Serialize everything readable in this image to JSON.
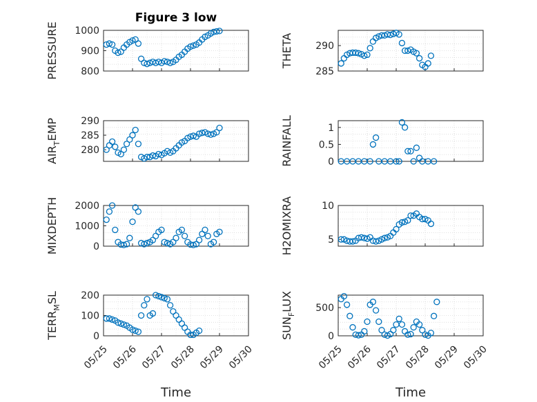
{
  "figure": {
    "title": "Figure 3 low"
  },
  "x_tick_labels": [
    "05/25",
    "05/26",
    "05/27",
    "05/28",
    "05/29",
    "05/30"
  ],
  "xlabel": "Time",
  "marker_color": "#0072bd",
  "chart_data": [
    {
      "type": "scatter",
      "name": "PRESSURE",
      "ylabel": "PRESSURE",
      "ylabel_sub": "",
      "ylim": [
        800,
        1000
      ],
      "yticks": [
        800,
        900,
        1000
      ],
      "xlim": [
        0,
        5
      ],
      "grid": true,
      "show_x_ticks": false,
      "title": "Figure 3 low",
      "points": [
        [
          0.1,
          930
        ],
        [
          0.2,
          935
        ],
        [
          0.3,
          930
        ],
        [
          0.4,
          900
        ],
        [
          0.5,
          890
        ],
        [
          0.6,
          895
        ],
        [
          0.7,
          915
        ],
        [
          0.8,
          930
        ],
        [
          0.9,
          942
        ],
        [
          1.0,
          950
        ],
        [
          1.1,
          955
        ],
        [
          1.2,
          935
        ],
        [
          1.3,
          860
        ],
        [
          1.4,
          840
        ],
        [
          1.5,
          835
        ],
        [
          1.6,
          840
        ],
        [
          1.7,
          845
        ],
        [
          1.8,
          840
        ],
        [
          1.9,
          845
        ],
        [
          2.0,
          840
        ],
        [
          2.1,
          848
        ],
        [
          2.2,
          845
        ],
        [
          2.3,
          840
        ],
        [
          2.4,
          845
        ],
        [
          2.5,
          855
        ],
        [
          2.6,
          870
        ],
        [
          2.7,
          880
        ],
        [
          2.8,
          895
        ],
        [
          2.9,
          910
        ],
        [
          3.0,
          920
        ],
        [
          3.1,
          925
        ],
        [
          3.2,
          930
        ],
        [
          3.3,
          940
        ],
        [
          3.4,
          955
        ],
        [
          3.5,
          968
        ],
        [
          3.6,
          975
        ],
        [
          3.7,
          985
        ],
        [
          3.8,
          992
        ],
        [
          3.9,
          995
        ],
        [
          4.0,
          997
        ]
      ]
    },
    {
      "type": "scatter",
      "name": "THETA",
      "ylabel": "THETA",
      "ylabel_sub": "",
      "ylim": [
        285,
        293
      ],
      "yticks": [
        285,
        290
      ],
      "xlim": [
        0,
        5
      ],
      "grid": true,
      "show_x_ticks": false,
      "points": [
        [
          0.1,
          286.5
        ],
        [
          0.2,
          287.5
        ],
        [
          0.3,
          288.2
        ],
        [
          0.4,
          288.5
        ],
        [
          0.5,
          288.6
        ],
        [
          0.6,
          288.6
        ],
        [
          0.7,
          288.5
        ],
        [
          0.8,
          288.3
        ],
        [
          0.9,
          288.0
        ],
        [
          1.0,
          288.2
        ],
        [
          1.1,
          289.5
        ],
        [
          1.2,
          290.8
        ],
        [
          1.3,
          291.5
        ],
        [
          1.4,
          291.8
        ],
        [
          1.5,
          292.0
        ],
        [
          1.6,
          292.0
        ],
        [
          1.7,
          292.2
        ],
        [
          1.8,
          292.1
        ],
        [
          1.9,
          292.3
        ],
        [
          2.0,
          292.5
        ],
        [
          2.1,
          292.2
        ],
        [
          2.2,
          290.5
        ],
        [
          2.3,
          289.0
        ],
        [
          2.4,
          289.0
        ],
        [
          2.5,
          289.2
        ],
        [
          2.6,
          288.8
        ],
        [
          2.7,
          288.5
        ],
        [
          2.8,
          287.5
        ],
        [
          2.9,
          286.2
        ],
        [
          3.0,
          285.8
        ],
        [
          3.1,
          286.5
        ],
        [
          3.2,
          288.0
        ]
      ]
    },
    {
      "type": "scatter",
      "name": "AIR_TEMP",
      "ylabel": "AIR",
      "ylabel_sub": "T",
      "ylabel_tail": "EMP",
      "ylim": [
        276,
        290
      ],
      "yticks": [
        280,
        285,
        290
      ],
      "xlim": [
        0,
        5
      ],
      "grid": true,
      "show_x_ticks": false,
      "points": [
        [
          0.1,
          280
        ],
        [
          0.2,
          281.5
        ],
        [
          0.3,
          282.8
        ],
        [
          0.4,
          281.0
        ],
        [
          0.5,
          279.0
        ],
        [
          0.6,
          278.5
        ],
        [
          0.7,
          280.0
        ],
        [
          0.8,
          282.0
        ],
        [
          0.9,
          283.5
        ],
        [
          1.0,
          285.0
        ],
        [
          1.1,
          286.8
        ],
        [
          1.2,
          282.0
        ],
        [
          1.3,
          277.5
        ],
        [
          1.4,
          277.0
        ],
        [
          1.5,
          277.5
        ],
        [
          1.6,
          277.5
        ],
        [
          1.7,
          278.0
        ],
        [
          1.8,
          277.8
        ],
        [
          1.9,
          278.5
        ],
        [
          2.0,
          278.2
        ],
        [
          2.1,
          278.8
        ],
        [
          2.2,
          279.5
        ],
        [
          2.3,
          279.0
        ],
        [
          2.4,
          279.5
        ],
        [
          2.5,
          280.5
        ],
        [
          2.6,
          281.5
        ],
        [
          2.7,
          282.5
        ],
        [
          2.8,
          283.0
        ],
        [
          2.9,
          284.0
        ],
        [
          3.0,
          284.5
        ],
        [
          3.1,
          284.8
        ],
        [
          3.2,
          284.5
        ],
        [
          3.3,
          285.5
        ],
        [
          3.4,
          285.8
        ],
        [
          3.5,
          286.0
        ],
        [
          3.6,
          285.5
        ],
        [
          3.7,
          285.2
        ],
        [
          3.8,
          285.5
        ],
        [
          3.9,
          286.0
        ],
        [
          4.0,
          287.5
        ]
      ]
    },
    {
      "type": "scatter",
      "name": "RAINFALL",
      "ylabel": "RAINFALL",
      "ylabel_sub": "",
      "ylim": [
        0,
        1.2
      ],
      "yticks": [
        0,
        0.5,
        1
      ],
      "xlim": [
        0,
        5
      ],
      "grid": true,
      "show_x_ticks": false,
      "points": [
        [
          0.1,
          0
        ],
        [
          0.3,
          0
        ],
        [
          0.5,
          0
        ],
        [
          0.7,
          0
        ],
        [
          0.9,
          0
        ],
        [
          1.1,
          0
        ],
        [
          1.2,
          0.5
        ],
        [
          1.3,
          0.7
        ],
        [
          1.4,
          0
        ],
        [
          1.6,
          0
        ],
        [
          1.8,
          0
        ],
        [
          2.0,
          0
        ],
        [
          2.1,
          0
        ],
        [
          2.2,
          1.15
        ],
        [
          2.3,
          1.0
        ],
        [
          2.4,
          0.3
        ],
        [
          2.5,
          0.3
        ],
        [
          2.6,
          0
        ],
        [
          2.7,
          0.4
        ],
        [
          2.8,
          0.1
        ],
        [
          2.9,
          0
        ],
        [
          3.1,
          0
        ],
        [
          3.3,
          0
        ]
      ]
    },
    {
      "type": "scatter",
      "name": "MIXDEPTH",
      "ylabel": "MIXDEPTH",
      "ylabel_sub": "",
      "ylim": [
        0,
        2000
      ],
      "yticks": [
        0,
        1000,
        2000
      ],
      "xlim": [
        0,
        5
      ],
      "grid": true,
      "show_x_ticks": false,
      "points": [
        [
          0.1,
          1300
        ],
        [
          0.2,
          1700
        ],
        [
          0.3,
          2000
        ],
        [
          0.4,
          800
        ],
        [
          0.5,
          200
        ],
        [
          0.6,
          80
        ],
        [
          0.7,
          60
        ],
        [
          0.8,
          100
        ],
        [
          0.9,
          400
        ],
        [
          1.0,
          1200
        ],
        [
          1.1,
          1900
        ],
        [
          1.2,
          1700
        ],
        [
          1.3,
          150
        ],
        [
          1.4,
          100
        ],
        [
          1.5,
          150
        ],
        [
          1.6,
          200
        ],
        [
          1.7,
          300
        ],
        [
          1.8,
          500
        ],
        [
          1.9,
          700
        ],
        [
          2.0,
          800
        ],
        [
          2.1,
          200
        ],
        [
          2.2,
          150
        ],
        [
          2.3,
          100
        ],
        [
          2.4,
          200
        ],
        [
          2.5,
          400
        ],
        [
          2.6,
          700
        ],
        [
          2.7,
          800
        ],
        [
          2.8,
          500
        ],
        [
          2.9,
          200
        ],
        [
          3.0,
          80
        ],
        [
          3.1,
          60
        ],
        [
          3.2,
          100
        ],
        [
          3.3,
          300
        ],
        [
          3.4,
          600
        ],
        [
          3.5,
          800
        ],
        [
          3.6,
          500
        ],
        [
          3.7,
          100
        ],
        [
          3.8,
          200
        ],
        [
          3.9,
          600
        ],
        [
          4.0,
          700
        ]
      ]
    },
    {
      "type": "scatter",
      "name": "H2OMIXRA",
      "ylabel": "H2OMIXRA",
      "ylabel_sub": "",
      "ylim": [
        4,
        10
      ],
      "yticks": [
        5,
        10
      ],
      "xlim": [
        0,
        5
      ],
      "grid": true,
      "show_x_ticks": false,
      "points": [
        [
          0.1,
          5.0
        ],
        [
          0.2,
          5.0
        ],
        [
          0.3,
          4.8
        ],
        [
          0.4,
          4.7
        ],
        [
          0.5,
          4.7
        ],
        [
          0.6,
          4.8
        ],
        [
          0.7,
          5.2
        ],
        [
          0.8,
          5.3
        ],
        [
          0.9,
          5.2
        ],
        [
          1.0,
          5.1
        ],
        [
          1.1,
          5.3
        ],
        [
          1.2,
          4.8
        ],
        [
          1.3,
          4.7
        ],
        [
          1.4,
          4.8
        ],
        [
          1.5,
          5.0
        ],
        [
          1.6,
          5.2
        ],
        [
          1.7,
          5.3
        ],
        [
          1.8,
          5.5
        ],
        [
          1.9,
          6.0
        ],
        [
          2.0,
          6.5
        ],
        [
          2.1,
          7.2
        ],
        [
          2.2,
          7.5
        ],
        [
          2.3,
          7.6
        ],
        [
          2.4,
          7.8
        ],
        [
          2.5,
          8.5
        ],
        [
          2.6,
          8.5
        ],
        [
          2.7,
          8.8
        ],
        [
          2.8,
          8.3
        ],
        [
          2.9,
          8.0
        ],
        [
          3.0,
          8.0
        ],
        [
          3.1,
          7.8
        ],
        [
          3.2,
          7.3
        ]
      ]
    },
    {
      "type": "scatter",
      "name": "TERR_MSL",
      "ylabel": "TERR",
      "ylabel_sub": "M",
      "ylabel_tail": "SL",
      "ylim": [
        0,
        200
      ],
      "yticks": [
        0,
        100,
        200
      ],
      "xlim": [
        0,
        5
      ],
      "grid": true,
      "show_x_ticks": true,
      "points": [
        [
          0.1,
          85
        ],
        [
          0.2,
          85
        ],
        [
          0.3,
          80
        ],
        [
          0.4,
          75
        ],
        [
          0.5,
          65
        ],
        [
          0.6,
          60
        ],
        [
          0.7,
          55
        ],
        [
          0.8,
          50
        ],
        [
          0.9,
          40
        ],
        [
          1.0,
          30
        ],
        [
          1.1,
          25
        ],
        [
          1.2,
          20
        ],
        [
          1.3,
          100
        ],
        [
          1.4,
          150
        ],
        [
          1.5,
          180
        ],
        [
          1.6,
          100
        ],
        [
          1.7,
          110
        ],
        [
          1.8,
          200
        ],
        [
          1.9,
          195
        ],
        [
          2.0,
          190
        ],
        [
          2.1,
          185
        ],
        [
          2.2,
          180
        ],
        [
          2.3,
          150
        ],
        [
          2.4,
          120
        ],
        [
          2.5,
          100
        ],
        [
          2.6,
          80
        ],
        [
          2.7,
          60
        ],
        [
          2.8,
          40
        ],
        [
          2.9,
          20
        ],
        [
          3.0,
          5
        ],
        [
          3.1,
          5
        ],
        [
          3.2,
          15
        ],
        [
          3.3,
          25
        ]
      ]
    },
    {
      "type": "scatter",
      "name": "SUN_FLUX",
      "ylabel": "SUN",
      "ylabel_sub": "F",
      "ylabel_tail": "LUX",
      "ylim": [
        0,
        720
      ],
      "yticks": [
        0,
        500
      ],
      "xlim": [
        0,
        5
      ],
      "grid": true,
      "show_x_ticks": true,
      "points": [
        [
          0.1,
          650
        ],
        [
          0.2,
          700
        ],
        [
          0.3,
          550
        ],
        [
          0.4,
          350
        ],
        [
          0.5,
          150
        ],
        [
          0.6,
          20
        ],
        [
          0.7,
          10
        ],
        [
          0.8,
          20
        ],
        [
          0.9,
          80
        ],
        [
          1.0,
          250
        ],
        [
          1.1,
          550
        ],
        [
          1.2,
          600
        ],
        [
          1.3,
          450
        ],
        [
          1.4,
          250
        ],
        [
          1.5,
          100
        ],
        [
          1.6,
          20
        ],
        [
          1.7,
          5
        ],
        [
          1.8,
          30
        ],
        [
          1.9,
          100
        ],
        [
          2.0,
          200
        ],
        [
          2.1,
          300
        ],
        [
          2.2,
          200
        ],
        [
          2.3,
          80
        ],
        [
          2.4,
          20
        ],
        [
          2.5,
          30
        ],
        [
          2.6,
          150
        ],
        [
          2.7,
          250
        ],
        [
          2.8,
          200
        ],
        [
          2.9,
          100
        ],
        [
          3.0,
          20
        ],
        [
          3.1,
          5
        ],
        [
          3.2,
          50
        ],
        [
          3.3,
          350
        ],
        [
          3.4,
          600
        ]
      ]
    }
  ]
}
